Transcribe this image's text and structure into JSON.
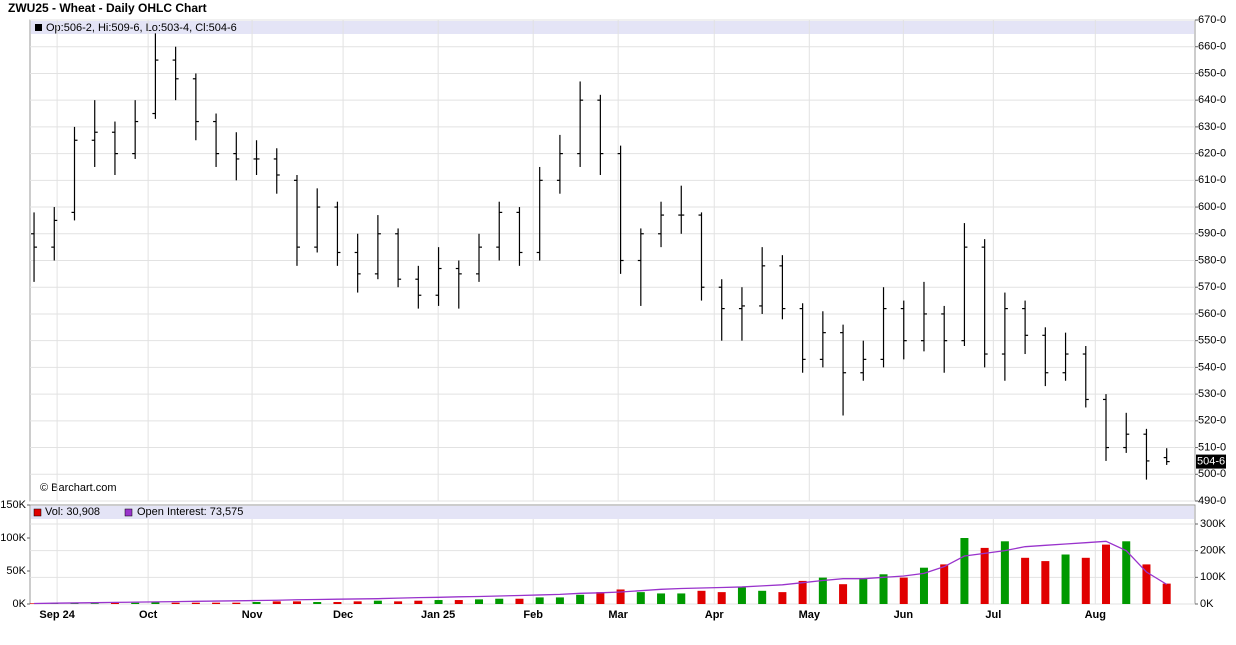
{
  "chart_data": {
    "type": "ohlc",
    "title": "ZWU25 - Wheat - Daily OHLC Chart",
    "ohlc_legend": "Op:506-2, Hi:509-6, Lo:503-4, Cl:504-6",
    "watermark": "© Barchart.com",
    "price_color": "#000000",
    "grid": true,
    "last_price": {
      "value": 504.75,
      "label": "504-6"
    },
    "xlim": [
      -0.2,
      57.4
    ],
    "xticks": [
      {
        "value": 1.14,
        "label": "Sep 24"
      },
      {
        "value": 5.64,
        "label": "Oct"
      },
      {
        "value": 10.78,
        "label": "Nov"
      },
      {
        "value": 15.28,
        "label": "Dec"
      },
      {
        "value": 19.98,
        "label": "Jan 25"
      },
      {
        "value": 24.68,
        "label": "Feb"
      },
      {
        "value": 28.88,
        "label": "Mar"
      },
      {
        "value": 33.63,
        "label": "Apr"
      },
      {
        "value": 38.33,
        "label": "May"
      },
      {
        "value": 42.98,
        "label": "Jun"
      },
      {
        "value": 47.43,
        "label": "Jul"
      },
      {
        "value": 52.47,
        "label": "Aug"
      }
    ],
    "ylim": [
      490,
      670
    ],
    "yticks": [
      {
        "value": 490,
        "label": "490-0"
      },
      {
        "value": 500,
        "label": "500-0"
      },
      {
        "value": 510,
        "label": "510-0"
      },
      {
        "value": 520,
        "label": "520-0"
      },
      {
        "value": 530,
        "label": "530-0"
      },
      {
        "value": 540,
        "label": "540-0"
      },
      {
        "value": 550,
        "label": "550-0"
      },
      {
        "value": 560,
        "label": "560-0"
      },
      {
        "value": 570,
        "label": "570-0"
      },
      {
        "value": 580,
        "label": "580-0"
      },
      {
        "value": 590,
        "label": "590-0"
      },
      {
        "value": 600,
        "label": "600-0"
      },
      {
        "value": 610,
        "label": "610-0"
      },
      {
        "value": 620,
        "label": "620-0"
      },
      {
        "value": 630,
        "label": "630-0"
      },
      {
        "value": 640,
        "label": "640-0"
      },
      {
        "value": 650,
        "label": "650-0"
      },
      {
        "value": 660,
        "label": "660-0"
      },
      {
        "value": 670,
        "label": "670-0"
      }
    ],
    "open": [
      590,
      585,
      598,
      625,
      628,
      620,
      635,
      655,
      648,
      632,
      620,
      618,
      618,
      610,
      585,
      600,
      583,
      575,
      590,
      573,
      567,
      577,
      575,
      585,
      598,
      583,
      610,
      620,
      640,
      620,
      580,
      590,
      597,
      597,
      570,
      562,
      563,
      578,
      562,
      543,
      553,
      538,
      543,
      562,
      550,
      560,
      550,
      585,
      545,
      562,
      552,
      538,
      545,
      528,
      510,
      515,
      506.25
    ],
    "high": [
      598,
      600,
      630,
      640,
      632,
      640,
      665,
      660,
      650,
      635,
      628,
      625,
      622,
      612,
      607,
      602,
      590,
      597,
      592,
      578,
      585,
      580,
      590,
      602,
      600,
      615,
      627,
      647,
      642,
      623,
      592,
      602,
      608,
      598,
      573,
      570,
      585,
      582,
      564,
      561,
      556,
      550,
      570,
      565,
      572,
      563,
      594,
      588,
      568,
      565,
      555,
      553,
      548,
      530,
      523,
      517,
      509.75
    ],
    "low": [
      572,
      580,
      595,
      615,
      612,
      618,
      633,
      640,
      625,
      615,
      610,
      612,
      605,
      578,
      583,
      578,
      568,
      573,
      570,
      562,
      563,
      562,
      572,
      580,
      578,
      580,
      605,
      615,
      612,
      575,
      563,
      585,
      590,
      565,
      550,
      550,
      560,
      558,
      538,
      540,
      522,
      535,
      540,
      543,
      546,
      538,
      548,
      540,
      535,
      545,
      533,
      535,
      525,
      505,
      508,
      498,
      503.5
    ],
    "close": [
      585,
      595,
      625,
      628,
      620,
      632,
      655,
      648,
      632,
      620,
      618,
      618,
      612,
      585,
      600,
      583,
      575,
      590,
      573,
      567,
      577,
      575,
      585,
      598,
      583,
      610,
      620,
      640,
      620,
      580,
      590,
      597,
      597,
      570,
      562,
      563,
      578,
      562,
      543,
      553,
      538,
      543,
      562,
      550,
      560,
      550,
      585,
      545,
      562,
      552,
      538,
      545,
      528,
      510,
      515,
      505,
      504.75
    ],
    "vlim": [
      0,
      150000
    ],
    "vticks": [
      {
        "value": 0,
        "label": "0K"
      },
      {
        "value": 50000,
        "label": "50K"
      },
      {
        "value": 100000,
        "label": "100K"
      },
      {
        "value": 150000,
        "label": "150K"
      }
    ],
    "y2lim": [
      0,
      300000
    ],
    "y2ticks": [
      {
        "value": 0,
        "label": "0K"
      },
      {
        "value": 100000,
        "label": "100K"
      },
      {
        "value": 200000,
        "label": "200K"
      },
      {
        "value": 300000,
        "label": "300K"
      }
    ],
    "volume": {
      "legend": "Vol: 30,908",
      "up_color": "#009900",
      "down_color": "#e00000",
      "values": [
        1000,
        1000,
        1000,
        1000,
        2000,
        2000,
        3000,
        2000,
        2000,
        2000,
        2000,
        3000,
        4000,
        4000,
        3000,
        3000,
        4000,
        5000,
        4000,
        5000,
        6000,
        6000,
        7000,
        8000,
        8000,
        10000,
        10000,
        14000,
        18000,
        22000,
        18000,
        16000,
        16000,
        20000,
        18000,
        25000,
        20000,
        18000,
        35000,
        40000,
        30000,
        38000,
        45000,
        40000,
        55000,
        60000,
        100000,
        85000,
        95000,
        70000,
        65000,
        75000,
        70000,
        90000,
        95000,
        60000,
        30908
      ]
    },
    "open_interest": {
      "legend": "Open Interest: 73,575",
      "color": "#9933cc",
      "axis": "y2",
      "values": [
        2000,
        3000,
        4000,
        5000,
        6000,
        7000,
        8000,
        9000,
        10000,
        11000,
        12000,
        13000,
        14000,
        16000,
        17000,
        18000,
        19000,
        20000,
        22000,
        24000,
        25000,
        27000,
        28000,
        30000,
        32000,
        34000,
        36000,
        40000,
        42000,
        45000,
        50000,
        55000,
        58000,
        60000,
        62000,
        64000,
        68000,
        72000,
        80000,
        88000,
        95000,
        95000,
        100000,
        105000,
        115000,
        140000,
        180000,
        190000,
        200000,
        215000,
        220000,
        225000,
        230000,
        235000,
        200000,
        120000,
        73575
      ]
    }
  }
}
